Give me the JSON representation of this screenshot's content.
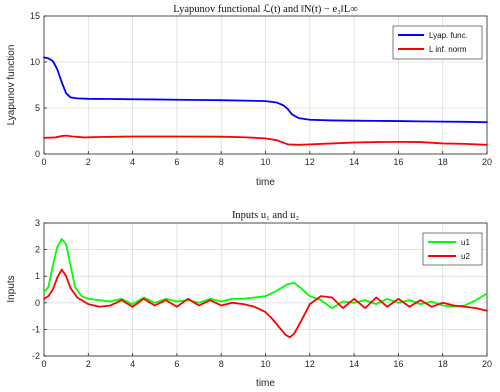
{
  "chart_data": [
    {
      "type": "line",
      "title": "Lyapunov functional ℒ(t) and ‖N(t) − e₃‖L∞",
      "xlabel": "time",
      "ylabel": "Lyapunov function",
      "xlim": [
        0,
        20
      ],
      "ylim": [
        0,
        15
      ],
      "xticks": [
        "0",
        "2",
        "4",
        "6",
        "8",
        "10",
        "12",
        "14",
        "16",
        "18",
        "20"
      ],
      "yticks": [
        "0",
        "5",
        "10",
        "15"
      ],
      "grid": true,
      "legend_position": "top-right",
      "series": [
        {
          "name": "Lyap. func.",
          "color": "#0000ff",
          "x": [
            0,
            0.2,
            0.4,
            0.6,
            0.8,
            1.0,
            1.2,
            1.5,
            2.0,
            3,
            4,
            5,
            6,
            7,
            8,
            9,
            10,
            10.5,
            10.8,
            11.0,
            11.2,
            11.5,
            12.0,
            13,
            14,
            15,
            16,
            17,
            18,
            19,
            20
          ],
          "y": [
            10.5,
            10.4,
            10.1,
            9.2,
            7.8,
            6.6,
            6.15,
            6.05,
            6.0,
            5.98,
            5.95,
            5.93,
            5.9,
            5.87,
            5.85,
            5.8,
            5.75,
            5.6,
            5.3,
            4.9,
            4.3,
            3.9,
            3.72,
            3.65,
            3.62,
            3.6,
            3.58,
            3.55,
            3.52,
            3.5,
            3.45
          ]
        },
        {
          "name": "L inf. norm",
          "color": "#ff0000",
          "x": [
            0,
            0.5,
            0.8,
            1.0,
            1.3,
            1.8,
            2.5,
            4,
            6,
            8,
            9,
            10,
            10.5,
            11.0,
            11.5,
            12,
            13,
            14,
            15,
            16,
            17,
            18,
            19,
            20
          ],
          "y": [
            1.75,
            1.8,
            1.95,
            2.0,
            1.9,
            1.8,
            1.85,
            1.9,
            1.9,
            1.88,
            1.82,
            1.7,
            1.5,
            1.05,
            1.0,
            1.05,
            1.15,
            1.25,
            1.3,
            1.32,
            1.3,
            1.15,
            1.1,
            1.0
          ]
        }
      ]
    },
    {
      "type": "line",
      "title": "Inputs u₁ and u₂",
      "xlabel": "time",
      "ylabel": "Inputs",
      "xlim": [
        0,
        20
      ],
      "ylim": [
        -2,
        3
      ],
      "xticks": [
        "0",
        "2",
        "4",
        "6",
        "8",
        "10",
        "12",
        "14",
        "16",
        "18",
        "20"
      ],
      "yticks": [
        "-2",
        "-1",
        "0",
        "1",
        "2",
        "3"
      ],
      "grid": true,
      "legend_position": "top-right",
      "series": [
        {
          "name": "u1",
          "color": "#00ff00",
          "x": [
            0,
            0.2,
            0.4,
            0.6,
            0.8,
            1.0,
            1.2,
            1.4,
            1.7,
            2.0,
            2.5,
            3,
            3.5,
            4,
            4.5,
            5,
            5.5,
            6,
            6.5,
            7,
            7.5,
            8,
            8.5,
            9,
            9.5,
            10,
            10.5,
            11.0,
            11.3,
            11.6,
            12.0,
            12.5,
            13,
            13.5,
            14,
            14.5,
            15,
            15.5,
            16,
            16.5,
            17,
            17.5,
            18,
            18.5,
            19,
            19.5,
            20
          ],
          "y": [
            0.4,
            0.6,
            1.4,
            2.1,
            2.4,
            2.2,
            1.4,
            0.6,
            0.25,
            0.15,
            0.1,
            0.05,
            0.15,
            -0.05,
            0.2,
            0.0,
            0.15,
            0.05,
            0.1,
            0.0,
            0.15,
            0.05,
            0.15,
            0.15,
            0.2,
            0.25,
            0.45,
            0.7,
            0.75,
            0.55,
            0.25,
            0.1,
            -0.2,
            0.05,
            0.0,
            0.1,
            -0.05,
            0.15,
            0.0,
            0.1,
            -0.05,
            0.05,
            -0.1,
            -0.15,
            -0.1,
            0.1,
            0.35
          ]
        },
        {
          "name": "u2",
          "color": "#ff0000",
          "x": [
            0,
            0.2,
            0.4,
            0.6,
            0.8,
            1.0,
            1.2,
            1.5,
            1.8,
            2.0,
            2.5,
            3,
            3.5,
            4,
            4.5,
            5,
            5.5,
            6,
            6.5,
            7,
            7.5,
            8,
            8.5,
            9,
            9.5,
            10,
            10.3,
            10.6,
            10.9,
            11.1,
            11.3,
            11.6,
            12.0,
            12.5,
            13,
            13.5,
            14,
            14.5,
            15,
            15.5,
            16,
            16.5,
            17,
            17.5,
            18,
            18.5,
            19,
            19.5,
            20
          ],
          "y": [
            0.15,
            0.25,
            0.5,
            0.95,
            1.25,
            1.0,
            0.55,
            0.2,
            0.05,
            -0.05,
            -0.15,
            -0.1,
            0.1,
            -0.15,
            0.15,
            -0.1,
            0.1,
            -0.15,
            0.15,
            -0.1,
            0.1,
            -0.1,
            0.0,
            -0.05,
            -0.15,
            -0.35,
            -0.6,
            -0.9,
            -1.2,
            -1.3,
            -1.15,
            -0.7,
            -0.05,
            0.25,
            0.2,
            -0.2,
            0.15,
            -0.2,
            0.2,
            -0.15,
            0.15,
            -0.15,
            0.1,
            -0.15,
            0.0,
            -0.1,
            -0.15,
            -0.2,
            -0.3
          ]
        }
      ]
    }
  ]
}
